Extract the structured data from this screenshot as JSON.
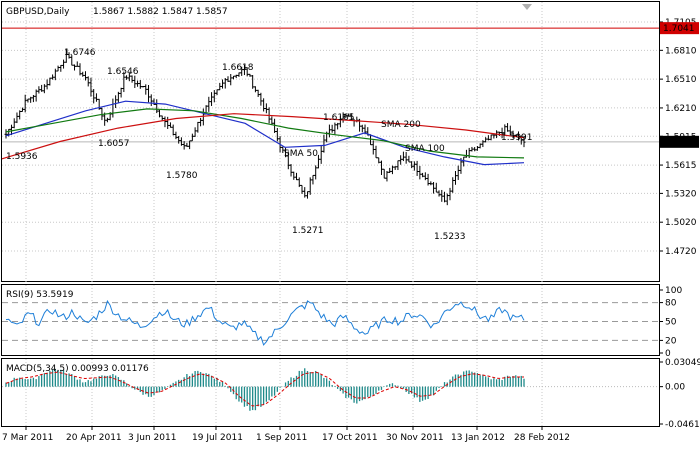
{
  "header": {
    "symbol_timeframe": "GBPUSD,Daily",
    "ohlc": "1.5867 1.5882 1.5847 1.5857"
  },
  "colors": {
    "bars": "#000000",
    "sma50": "#1f2fc9",
    "sma100": "#117a11",
    "sma200": "#cc1010",
    "rsi": "#1e7fd8",
    "macd_hist": "#1f8a8a",
    "macd_signal": "#dd0000",
    "grid": "#c8c8c8",
    "hline": "#d00000"
  },
  "panels": {
    "rsi_label": "RSI(9) 53.5919",
    "macd_label": "MACD(5,34,5) 0.00993 0.01176"
  },
  "chart_data": {
    "type": "ohlc",
    "title": "GBPUSD,Daily",
    "price_axis": {
      "ticks": [
        "1.7105",
        "1.6810",
        "1.6510",
        "1.6210",
        "1.5915",
        "1.5615",
        "1.5320",
        "1.5020",
        "1.4720"
      ],
      "ylim": [
        1.472,
        1.7105
      ]
    },
    "x_ticks": [
      "7 Mar 2011",
      "20 Apr 2011",
      "3 Jun 2011",
      "19 Jul 2011",
      "1 Sep 2011",
      "17 Oct 2011",
      "30 Nov 2011",
      "13 Jan 2012",
      "28 Feb 2012"
    ],
    "horizontal_line": {
      "value": 1.7041,
      "label": "1.7041"
    },
    "current_price": {
      "value": 1.5857,
      "label": "1.5857"
    },
    "price_path": [
      1.5936,
      1.628,
      1.645,
      1.6746,
      1.652,
      1.6057,
      1.6546,
      1.64,
      1.605,
      1.578,
      1.62,
      1.65,
      1.6618,
      1.62,
      1.57,
      1.5271,
      1.59,
      1.6165,
      1.6,
      1.55,
      1.57,
      1.55,
      1.5233,
      1.57,
      1.585,
      1.5991,
      1.5857
    ],
    "sma_lines": [
      {
        "name": "SMA 50",
        "values": [
          1.592,
          1.605,
          1.618,
          1.628,
          1.625,
          1.615,
          1.605,
          1.58,
          1.582,
          1.595,
          1.58,
          1.57,
          1.562,
          1.564
        ]
      },
      {
        "name": "SMA 100",
        "values": [
          1.596,
          1.605,
          1.614,
          1.62,
          1.618,
          1.61,
          1.6,
          1.593,
          1.587,
          1.576,
          1.57,
          1.569
        ]
      },
      {
        "name": "SMA 200",
        "values": [
          1.568,
          1.586,
          1.6,
          1.61,
          1.615,
          1.612,
          1.608,
          1.604,
          1.598,
          1.59
        ]
      }
    ],
    "annotations": [
      "1.6746",
      "1.6546",
      "1.6057",
      "1.5936",
      "1.5780",
      "1.6618",
      "1.5271",
      "1.6165",
      "1.5233",
      "1.5991"
    ],
    "rsi": {
      "label": "RSI(9) 53.5919",
      "ticks": [
        "100",
        "80",
        "50",
        "20",
        "0"
      ],
      "ylim": [
        0,
        100
      ],
      "levels": [
        80,
        50,
        20
      ],
      "values": [
        55,
        40,
        62,
        48,
        70,
        55,
        66,
        45,
        58,
        78,
        60,
        50,
        42,
        55,
        68,
        52,
        45,
        60,
        72,
        50,
        38,
        48,
        30,
        18,
        35,
        55,
        70,
        80,
        60,
        45,
        58,
        40,
        30,
        45,
        55,
        50,
        62,
        58,
        42,
        65,
        80,
        78,
        60,
        52,
        70,
        55,
        54
      ]
    },
    "macd": {
      "label": "MACD(5,34,5) 0.00993 0.01176",
      "ticks": [
        "0.03049",
        "0.00",
        "-0.04618"
      ],
      "ylim": [
        -0.04618,
        0.03049
      ],
      "histogram": [
        0.005,
        0.012,
        0.008,
        0.018,
        0.022,
        0.015,
        0.006,
        0.01,
        0.016,
        0.008,
        -0.004,
        -0.012,
        -0.006,
        0.004,
        0.014,
        0.02,
        0.012,
        0.002,
        -0.018,
        -0.03,
        -0.022,
        -0.006,
        0.01,
        0.022,
        0.018,
        0.006,
        -0.01,
        -0.02,
        -0.014,
        -0.002,
        0.004,
        -0.006,
        -0.018,
        -0.01,
        0.006,
        0.016,
        0.02,
        0.012,
        0.008,
        0.014,
        0.011
      ],
      "signal": [
        0.004,
        0.01,
        0.012,
        0.016,
        0.018,
        0.014,
        0.01,
        0.011,
        0.012,
        0.006,
        -0.002,
        -0.008,
        -0.006,
        0.002,
        0.01,
        0.016,
        0.012,
        0.004,
        -0.012,
        -0.024,
        -0.022,
        -0.01,
        0.004,
        0.016,
        0.018,
        0.01,
        -0.004,
        -0.014,
        -0.014,
        -0.006,
        0.0,
        -0.004,
        -0.012,
        -0.01,
        0.002,
        0.012,
        0.016,
        0.014,
        0.01,
        0.012,
        0.012
      ]
    }
  }
}
